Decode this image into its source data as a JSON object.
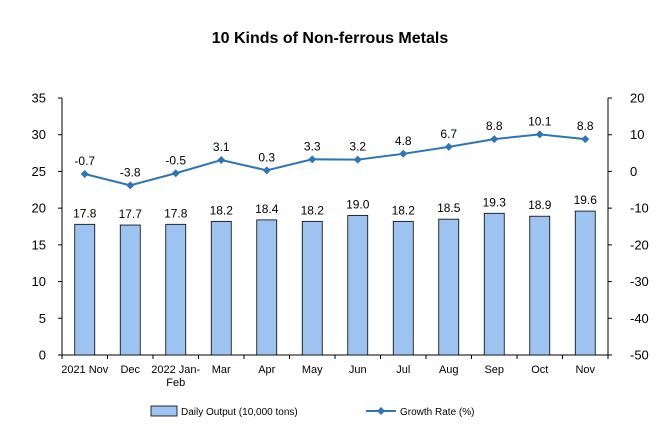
{
  "chart_data": {
    "type": "bar",
    "title": "10 Kinds of Non-ferrous Metals",
    "categories": [
      "2021 Nov",
      "Dec",
      "2022 Jan-\nFeb",
      "Mar",
      "Apr",
      "May",
      "Jun",
      "Jul",
      "Aug",
      "Sep",
      "Oct",
      "Nov"
    ],
    "series": [
      {
        "name": "Daily Output (10,000 tons)",
        "type": "bar",
        "axis": "left",
        "values": [
          17.8,
          17.7,
          17.8,
          18.2,
          18.4,
          18.2,
          19.0,
          18.2,
          18.5,
          19.3,
          18.9,
          19.6
        ],
        "labels": [
          "17.8",
          "17.7",
          "17.8",
          "18.2",
          "18.4",
          "18.2",
          "19.0",
          "18.2",
          "18.5",
          "19.3",
          "18.9",
          "19.6"
        ],
        "color": "#9DC3F0"
      },
      {
        "name": "Growth Rate (%)",
        "type": "line",
        "axis": "right",
        "values": [
          -0.7,
          -3.8,
          -0.5,
          3.1,
          0.3,
          3.3,
          3.2,
          4.8,
          6.7,
          8.8,
          10.1,
          8.8
        ],
        "labels": [
          "-0.7",
          "-3.8",
          "-0.5",
          "3.1",
          "0.3",
          "3.3",
          "3.2",
          "4.8",
          "6.7",
          "8.8",
          "10.1",
          "8.8"
        ],
        "color": "#2E75B6"
      }
    ],
    "y_left": {
      "min": 0,
      "max": 35,
      "ticks": [
        "0",
        "5",
        "10",
        "15",
        "20",
        "25",
        "30",
        "35"
      ]
    },
    "y_right": {
      "min": -50,
      "max": 20,
      "ticks": [
        "-50",
        "-40",
        "-30",
        "-20",
        "-10",
        "0",
        "10",
        "20"
      ]
    },
    "legend_position": "bottom",
    "grid": false
  },
  "colors": {
    "bar_fill": "#9DC3F0",
    "bar_stroke": "#000000",
    "line": "#2E75B6",
    "axis": "#000000"
  }
}
